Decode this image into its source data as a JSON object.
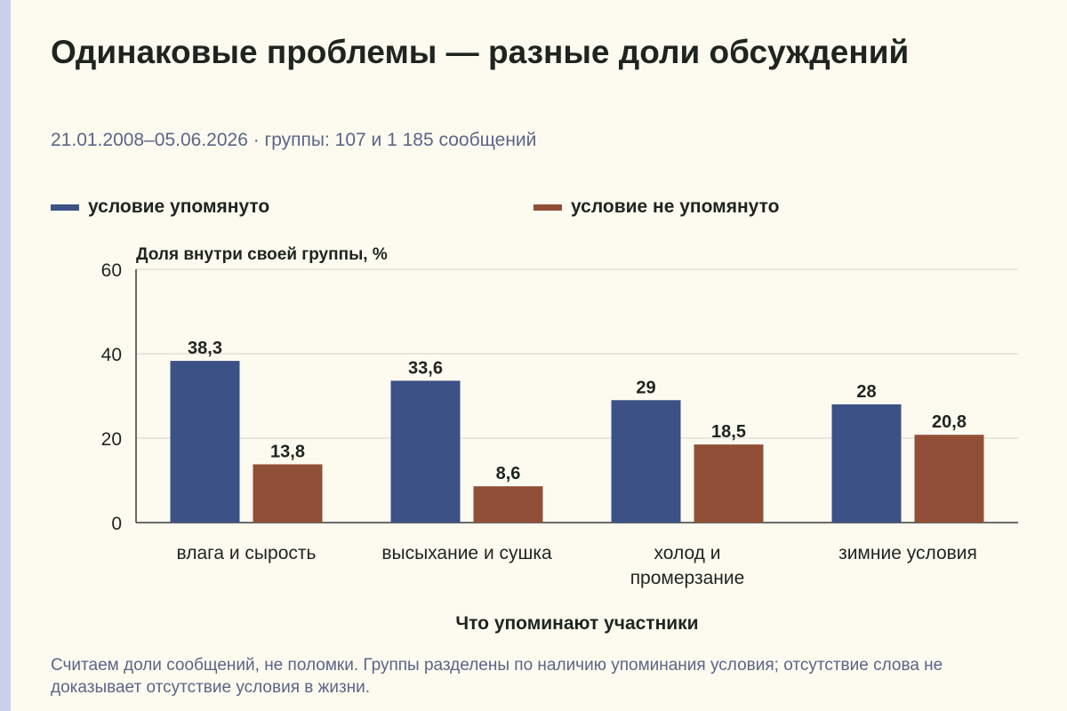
{
  "header": {
    "title": "Одинаковые проблемы — разные доли обсуждений",
    "subtitle": "21.01.2008–05.06.2026 · группы: 107 и 1 185 сообщений"
  },
  "footnote": "Считаем доли сообщений, не поломки. Группы разделены по наличию упоминания условия; отсутствие слова не доказывает отсутствие условия в жизни.",
  "chart_data": {
    "type": "bar",
    "ylabel": "Доля внутри своей группы, %",
    "xlabel": "Что упоминают участники",
    "ylim": [
      0,
      60
    ],
    "yticks": [
      0,
      20,
      40,
      60
    ],
    "grid": true,
    "legend_position": "top",
    "categories": [
      "влага и сырость",
      "высыхание и сушка",
      "холод и промерзание",
      "зимние условия"
    ],
    "series": [
      {
        "name": "условие упомянуто",
        "color": "#3c5185",
        "values": [
          38.3,
          33.6,
          29,
          28
        ],
        "labels": [
          "38,3",
          "33,6",
          "29",
          "28"
        ]
      },
      {
        "name": "условие не упомянуто",
        "color": "#924f37",
        "values": [
          13.8,
          8.6,
          18.5,
          20.8
        ],
        "labels": [
          "13,8",
          "8,6",
          "18,5",
          "20,8"
        ]
      }
    ]
  }
}
